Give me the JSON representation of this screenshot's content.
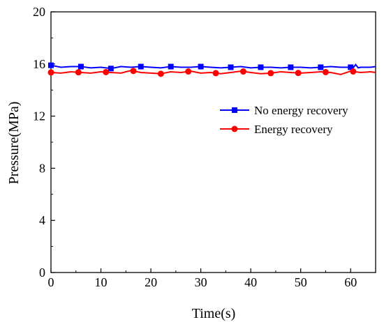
{
  "chart_data": {
    "type": "line",
    "title": "",
    "xlabel": "Time(s)",
    "ylabel": "Pressure(MPa)",
    "xlim": [
      0,
      65
    ],
    "ylim": [
      0,
      20
    ],
    "x_ticks": [
      0,
      10,
      20,
      30,
      40,
      50,
      60
    ],
    "y_ticks": [
      0,
      4,
      8,
      12,
      16,
      20
    ],
    "grid": false,
    "legend_position": "center-right",
    "series": [
      {
        "name": "No energy recovery",
        "color": "#0000ff",
        "marker": "square",
        "x": [
          0,
          2,
          4,
          6,
          8,
          10,
          12,
          14,
          16,
          18,
          20,
          22,
          24,
          26,
          28,
          30,
          32,
          34,
          36,
          38,
          40,
          42,
          44,
          46,
          48,
          50,
          52,
          54,
          56,
          58,
          60,
          60.5,
          61,
          61.5,
          62,
          64,
          65
        ],
        "y": [
          15.9,
          15.75,
          15.8,
          15.8,
          15.7,
          15.75,
          15.65,
          15.8,
          15.75,
          15.8,
          15.75,
          15.7,
          15.8,
          15.75,
          15.75,
          15.8,
          15.75,
          15.7,
          15.75,
          15.8,
          15.7,
          15.75,
          15.75,
          15.7,
          15.75,
          15.75,
          15.7,
          15.75,
          15.8,
          15.75,
          15.75,
          15.7,
          15.95,
          15.7,
          15.75,
          15.75,
          15.8
        ],
        "marker_x": [
          0,
          6,
          12,
          18,
          24,
          30,
          36,
          42,
          48,
          54,
          60
        ]
      },
      {
        "name": "Energy recovery",
        "color": "#ff0000",
        "marker": "circle",
        "x": [
          0,
          2,
          4,
          6,
          8,
          10,
          12,
          14,
          16,
          18,
          20,
          22,
          24,
          26,
          28,
          30,
          32,
          34,
          36,
          38,
          40,
          42,
          44,
          46,
          48,
          50,
          52,
          54,
          56,
          58,
          60,
          62,
          64,
          65
        ],
        "y": [
          15.35,
          15.3,
          15.4,
          15.35,
          15.3,
          15.4,
          15.35,
          15.3,
          15.5,
          15.35,
          15.3,
          15.25,
          15.4,
          15.35,
          15.45,
          15.3,
          15.35,
          15.25,
          15.35,
          15.45,
          15.35,
          15.25,
          15.3,
          15.4,
          15.35,
          15.3,
          15.35,
          15.4,
          15.35,
          15.2,
          15.45,
          15.35,
          15.4,
          15.35
        ],
        "marker_x": [
          0,
          5.5,
          11,
          16.5,
          22,
          27.5,
          33,
          38.5,
          44,
          49.5,
          55,
          60.5
        ]
      }
    ]
  }
}
